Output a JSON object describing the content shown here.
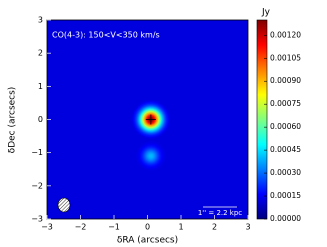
{
  "chart_data": {
    "type": "image",
    "annotation": "CO(4-3):  150<V<350  km/s",
    "scale_label": "1'' = 2.2 kpc",
    "xlabel": "δRA (arcsecs)",
    "ylabel": "δDec (arcsecs)",
    "colorbar_label": "Jy",
    "colormap": "jet",
    "background_value": 0.00012,
    "points": {
      "x": [
        0.1,
        0.1
      ],
      "y": [
        0,
        -1.1
      ],
      "values": [
        0.0013,
        0.0004
      ]
    },
    "xlim": [
      -3,
      3
    ],
    "ylim": [
      -3,
      3
    ],
    "xticks": [
      {
        "value": -3,
        "label": "−3"
      },
      {
        "value": -2,
        "label": "−2"
      },
      {
        "value": -1,
        "label": "−1"
      },
      0,
      1,
      2,
      3
    ],
    "yticks": [
      {
        "value": -3,
        "label": "−3"
      },
      {
        "value": -2,
        "label": "−2"
      },
      {
        "value": -1,
        "label": "−1"
      },
      0,
      1,
      2,
      3
    ],
    "clim": [
      0,
      0.0013
    ],
    "cticks": [
      {
        "value": 0,
        "label": "0.00000"
      },
      {
        "value": 0.00015,
        "label": "0.00015"
      },
      {
        "value": 0.0003,
        "label": "0.00030"
      },
      {
        "value": 0.00045,
        "label": "0.00045"
      },
      {
        "value": 0.0006,
        "label": "0.00060"
      },
      {
        "value": 0.00075,
        "label": "0.00075"
      },
      {
        "value": 0.0009,
        "label": "0.00090"
      },
      {
        "value": 0.00105,
        "label": "0.00105"
      },
      {
        "value": 0.0012,
        "label": "0.00120"
      }
    ]
  }
}
